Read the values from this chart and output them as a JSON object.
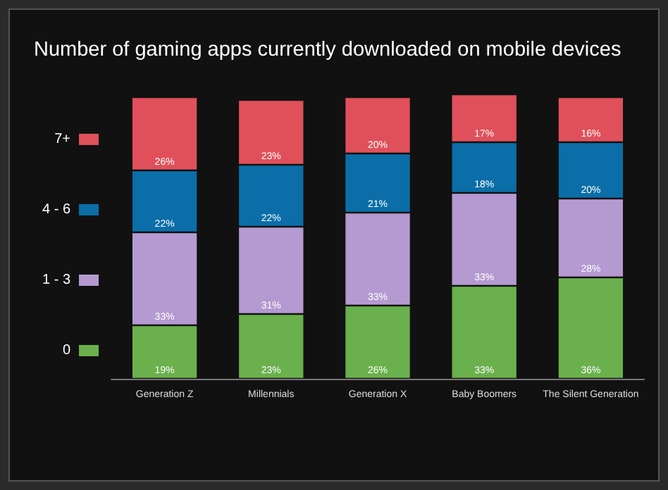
{
  "chart_data": {
    "type": "bar",
    "title": "Number of gaming apps currently downloaded on mobile devices",
    "categories": [
      "Generation Z",
      "Millennials",
      "Generation X",
      "Baby Boomers",
      "The Silent Generation"
    ],
    "stacked": true,
    "legend": "left",
    "grid": false,
    "tick_labels": "x",
    "series": [
      {
        "name": "0",
        "color": "#6ab04c",
        "values": [
          19,
          23,
          26,
          33,
          36
        ],
        "value_labels": [
          "19%",
          "23%",
          "26%",
          "33%",
          "36%"
        ]
      },
      {
        "name": "1 - 3",
        "color": "#b49ad0",
        "values": [
          33,
          31,
          33,
          33,
          28
        ],
        "value_labels": [
          "33%",
          "31%",
          "33%",
          "33%",
          "28%"
        ]
      },
      {
        "name": "4 - 6",
        "color": "#0b6ea8",
        "values": [
          22,
          22,
          21,
          18,
          20
        ],
        "value_labels": [
          "22%",
          "22%",
          "21%",
          "18%",
          "20%"
        ]
      },
      {
        "name": "7+",
        "color": "#e0505a",
        "values": [
          26,
          23,
          20,
          17,
          16
        ],
        "value_labels": [
          "26%",
          "23%",
          "20%",
          "17%",
          "16%"
        ]
      }
    ]
  }
}
